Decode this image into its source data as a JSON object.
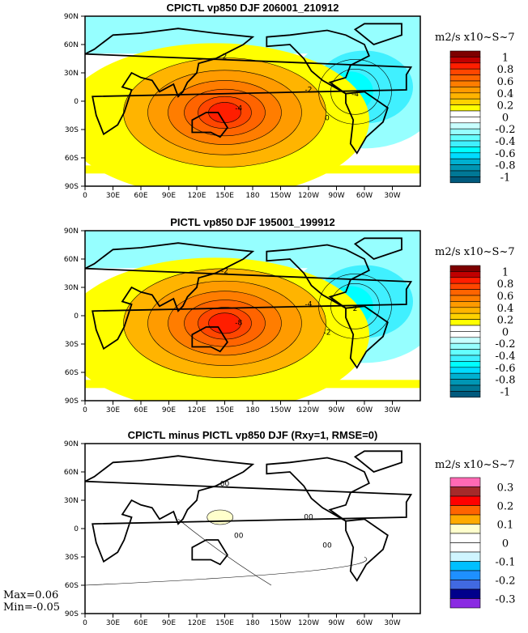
{
  "chart_data": [
    {
      "type": "heatmap",
      "title": "CPICTL vp850 DJF 206001_210912",
      "units": "m2/s x10~S~7",
      "xticks": [
        "0",
        "30E",
        "60E",
        "90E",
        "120E",
        "150E",
        "180",
        "150W",
        "120W",
        "90W",
        "60W",
        "30W"
      ],
      "yticks": [
        "90N",
        "60N",
        "30N",
        "0",
        "30S",
        "60S",
        "90S"
      ],
      "colorbar": {
        "labels": [
          "1",
          "0.8",
          "0.6",
          "0.4",
          "0.2",
          "0",
          "-0.2",
          "-0.4",
          "-0.6",
          "-0.8",
          "-1"
        ],
        "colors": [
          "#7d0000",
          "#c00000",
          "#ff1e00",
          "#ff4600",
          "#ff6400",
          "#ff7d00",
          "#ff9b00",
          "#ffb400",
          "#ffd200",
          "#ffff00",
          "#ffffff",
          "#ffffff",
          "#c8ffff",
          "#96ffff",
          "#64ffff",
          "#40f0ff",
          "#00ffff",
          "#00dcff",
          "#00b0d0",
          "#0096b4",
          "#007896",
          "#005a7d"
        ]
      },
      "contour_labels": [
        "2",
        "-4",
        "-2",
        "0",
        "-4"
      ],
      "features": {
        "max_center": {
          "lon": 150,
          "lat": -15,
          "value": 0.9
        },
        "min_center": {
          "lon": -70,
          "lat": 10,
          "value": -0.5
        }
      }
    },
    {
      "type": "heatmap",
      "title": "PICTL vp850 DJF 195001_199912",
      "units": "m2/s x10~S~7",
      "xticks": [
        "0",
        "30E",
        "60E",
        "90E",
        "120E",
        "150E",
        "180",
        "150W",
        "120W",
        "90W",
        "60W",
        "30W"
      ],
      "yticks": [
        "90N",
        "60N",
        "30N",
        "0",
        "30S",
        "60S",
        "90S"
      ],
      "colorbar": {
        "labels": [
          "1",
          "0.8",
          "0.6",
          "0.4",
          "0.2",
          "0",
          "-0.2",
          "-0.4",
          "-0.6",
          "-0.8",
          "-1"
        ],
        "colors": [
          "#7d0000",
          "#c00000",
          "#ff1e00",
          "#ff4600",
          "#ff6400",
          "#ff7d00",
          "#ff9b00",
          "#ffb400",
          "#ffd200",
          "#ffff00",
          "#ffffff",
          "#ffffff",
          "#c8ffff",
          "#96ffff",
          "#64ffff",
          "#40f0ff",
          "#00ffff",
          "#00dcff",
          "#00b0d0",
          "#0096b4",
          "#007896",
          "#005a7d"
        ]
      },
      "contour_labels": [
        "-2",
        "-8",
        "-4",
        "-2",
        "2"
      ],
      "features": {
        "max_center": {
          "lon": 150,
          "lat": -10,
          "value": 0.8
        },
        "min_center": {
          "lon": -70,
          "lat": 10,
          "value": -0.5
        }
      }
    },
    {
      "type": "heatmap",
      "title": "CPICTL minus PICTL vp850 DJF (Rxy=1, RMSE=0)",
      "units": "m2/s x10~S~7",
      "xticks": [
        "0",
        "30E",
        "60E",
        "90E",
        "120E",
        "150E",
        "180",
        "150W",
        "120W",
        "90W",
        "60W",
        "30W"
      ],
      "yticks": [
        "90N",
        "60N",
        "30N",
        "0",
        "30S",
        "60S",
        "90S"
      ],
      "colorbar": {
        "labels": [
          "0.3",
          "0.2",
          "0.1",
          "0",
          "-0.1",
          "-0.2",
          "-0.3"
        ],
        "colors": [
          "#ff69b4",
          "#a52a2a",
          "#ff0000",
          "#ff6400",
          "#ffaa00",
          "#ffffcc",
          "#ffffff",
          "#ffffff",
          "#cff5ff",
          "#00bfff",
          "#1e90ff",
          "#4169e1",
          "#00008b",
          "#8a2be2"
        ]
      },
      "contour_labels": [
        "00",
        "00",
        "00",
        "00"
      ],
      "stats": {
        "max": "Max=0.06",
        "min": "Min=-0.05"
      }
    }
  ]
}
